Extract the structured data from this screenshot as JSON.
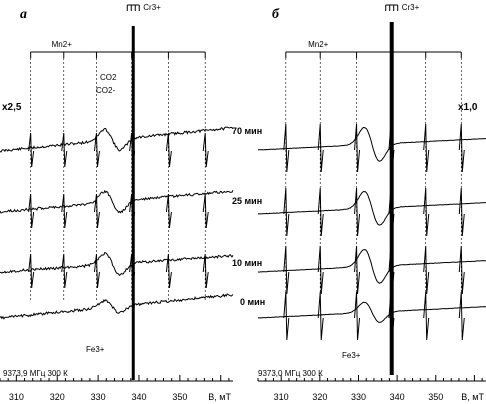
{
  "chart_data": [
    {
      "type": "line",
      "panel_label": "а",
      "scale_label": "x2,5",
      "frequency_label": "9373,9 МГц 300 К",
      "ion_labels": {
        "cr": "Cr3+",
        "mn": "Mn2+",
        "co2": "CO2",
        "co2_minus": "CO2-",
        "fe": "Fe3+"
      },
      "x_axis": {
        "unit_label": "B, мТ",
        "ticks": [
          310,
          320,
          330,
          340,
          350
        ],
        "range": [
          306,
          363
        ]
      },
      "series": [
        {
          "name": "70 мин"
        },
        {
          "name": "25 мин"
        },
        {
          "name": "10 мин"
        },
        {
          "name": "0 мин"
        }
      ],
      "mn_hyperfine_lines_mT": [
        313.5,
        321.6,
        329.6,
        338.2,
        347.2,
        356.2
      ],
      "cr_line_mT": 338.6
    },
    {
      "type": "line",
      "panel_label": "б",
      "scale_label": "x1,0",
      "frequency_label": "9373,0 МГц 300 К",
      "ion_labels": {
        "cr": "Cr3+",
        "mn": "Mn2+",
        "fe": "Fe3+"
      },
      "x_axis": {
        "unit_label": "B, мТ",
        "ticks": [
          310,
          320,
          330,
          340,
          350
        ],
        "range": [
          304,
          363
        ]
      },
      "series": [
        {
          "name": "70 мин"
        },
        {
          "name": "25 мин"
        },
        {
          "name": "10 мин"
        },
        {
          "name": "0 мин"
        }
      ],
      "mn_hyperfine_lines_mT": [
        311.2,
        320.1,
        329.5,
        338.4,
        347.4,
        356.6
      ],
      "cr_line_mT": 338.6
    }
  ]
}
